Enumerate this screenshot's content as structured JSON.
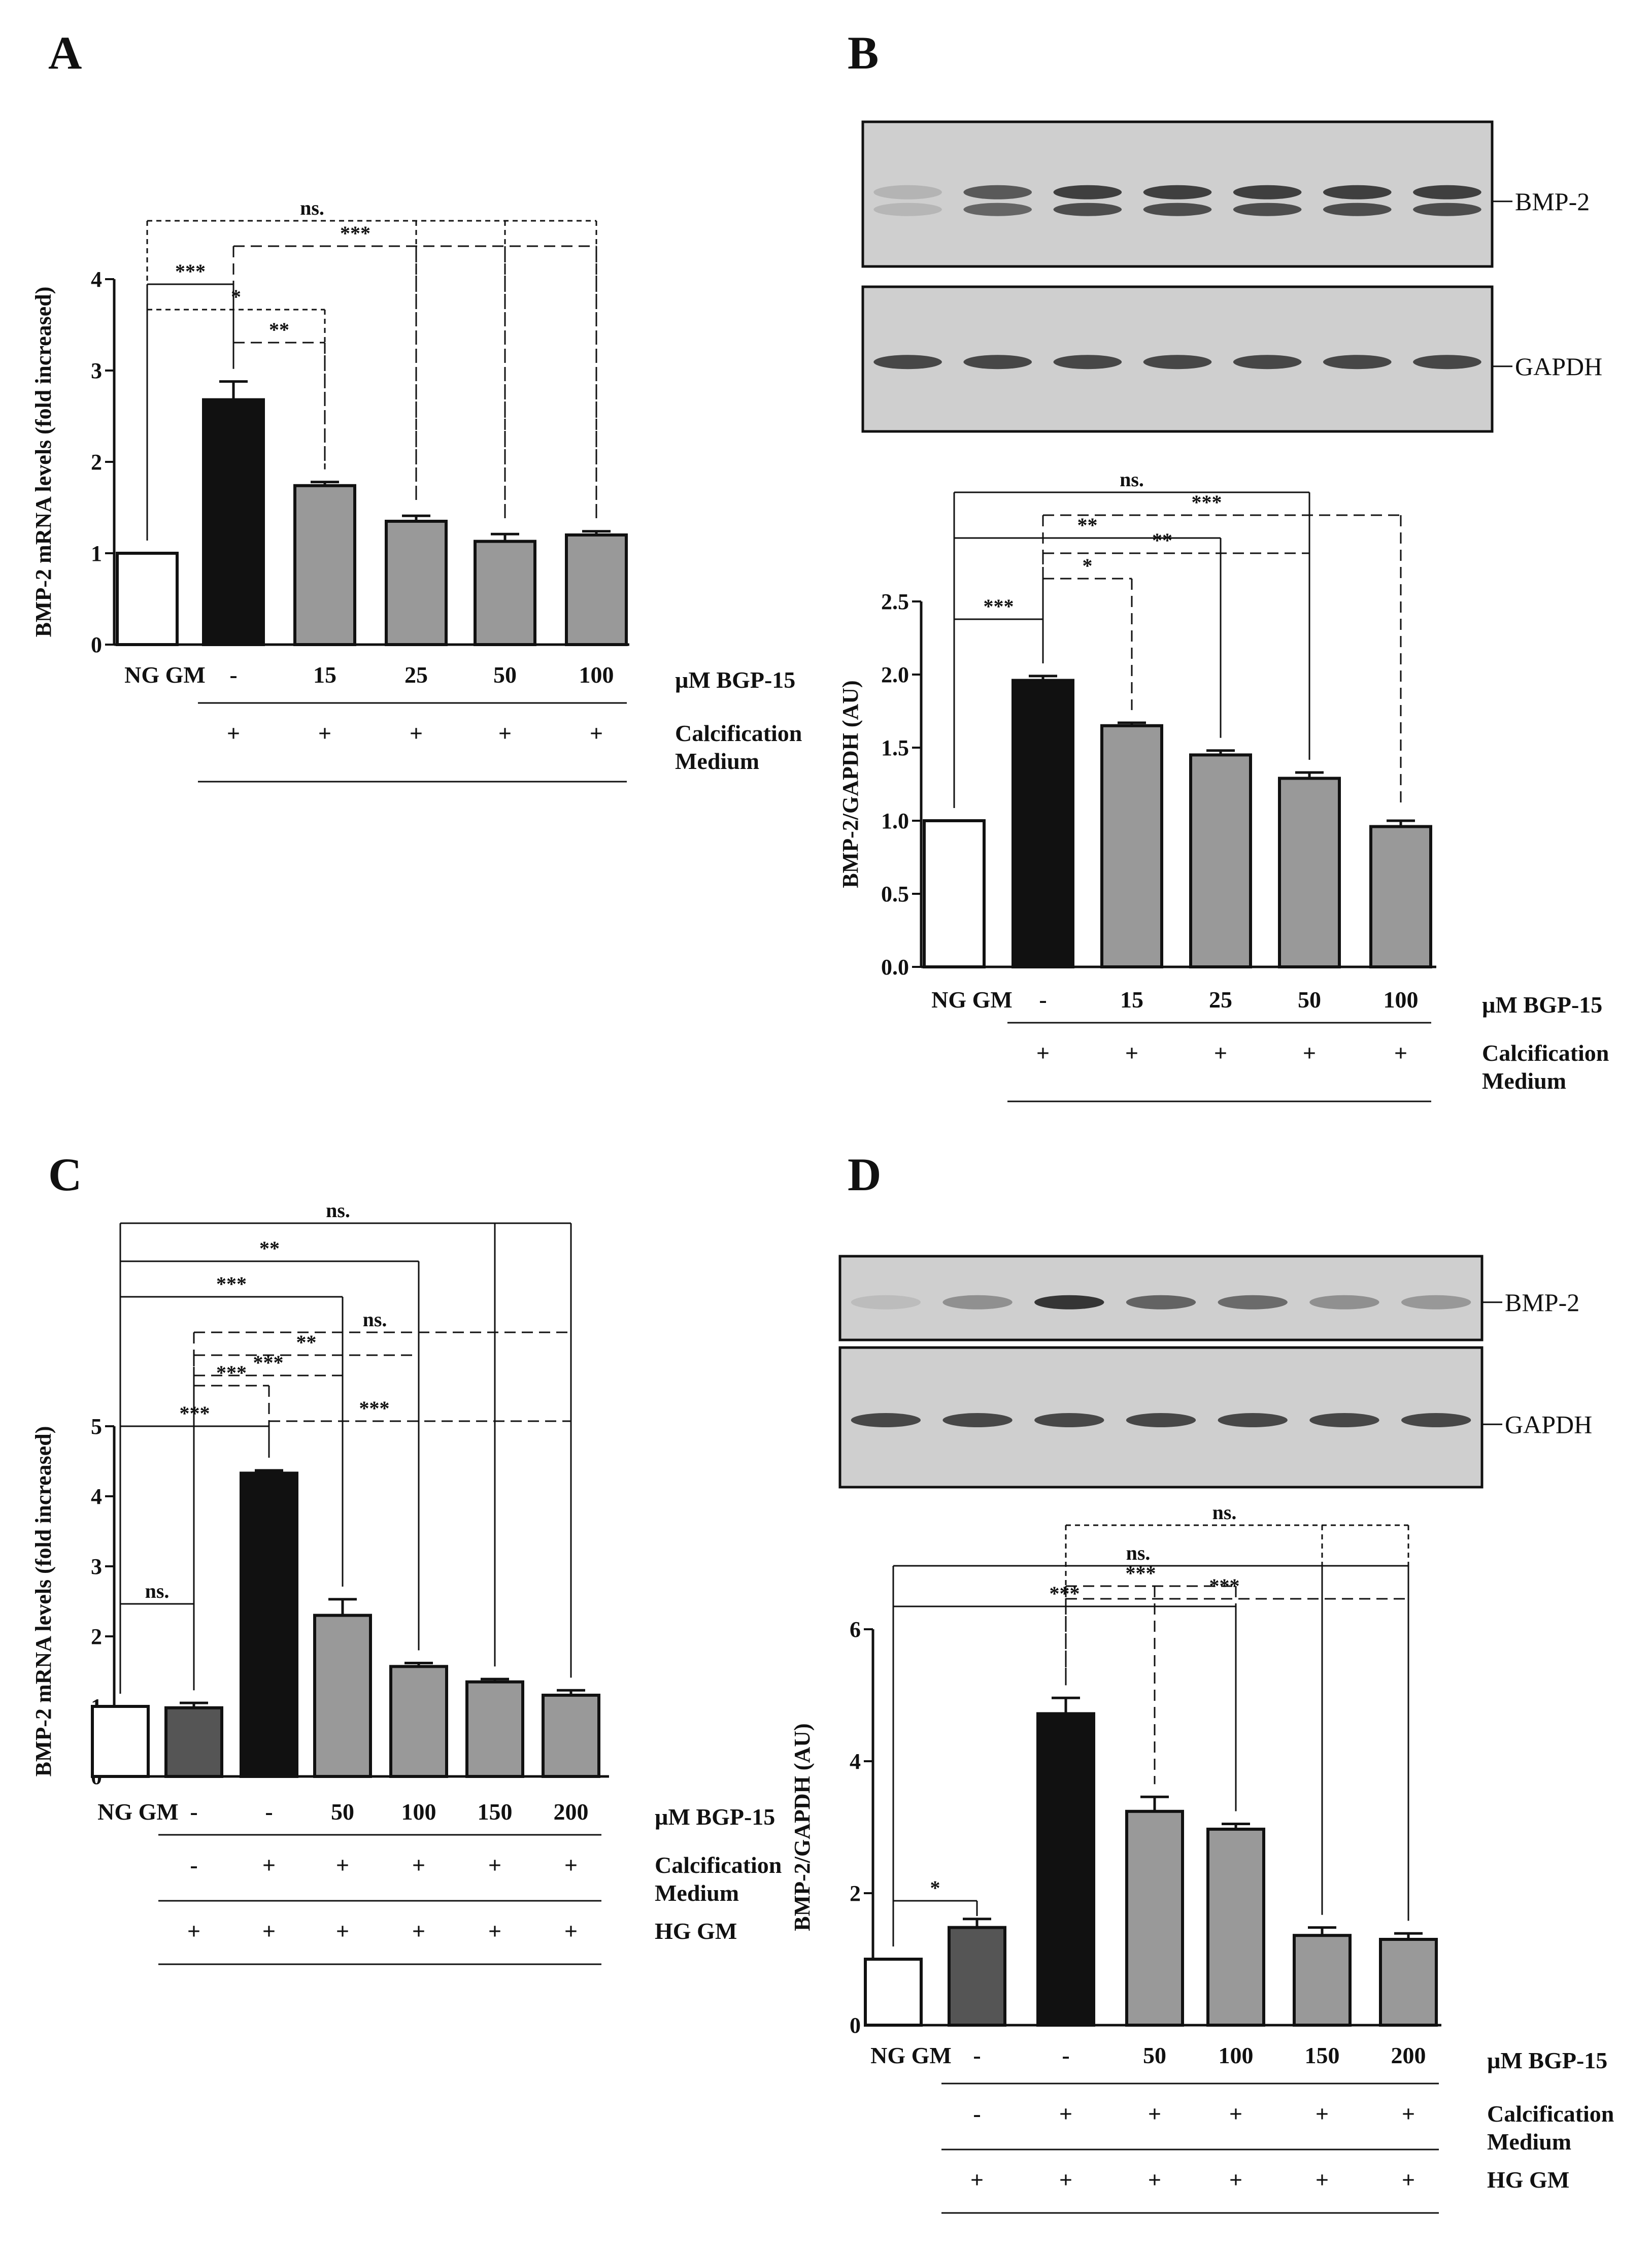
{
  "panels": {
    "A": {
      "letter": "A",
      "chart_data": {
        "type": "bar",
        "categories": [
          "NG GM",
          "-",
          "15",
          "25",
          "50",
          "100"
        ],
        "values": [
          1.0,
          2.68,
          1.74,
          1.35,
          1.13,
          1.2
        ],
        "errors": [
          0,
          0.2,
          0.04,
          0.06,
          0.08,
          0.04
        ],
        "bar_colors": [
          "#ffffff",
          "#111111",
          "#999999",
          "#999999",
          "#999999",
          "#999999"
        ],
        "ylabel": "BMP-2 mRNA levels (fold increased)",
        "ylim": [
          0,
          4
        ],
        "yticks": [
          "0",
          "1",
          "2",
          "3",
          "4"
        ],
        "treatment_label": "µM BGP-15",
        "condition_rows": [
          {
            "label": "Calcification\nMedium",
            "marks": [
              "",
              "+",
              "+",
              "+",
              "+",
              "+"
            ]
          }
        ],
        "significance": [
          {
            "label": "***",
            "from": 0,
            "to": 1,
            "style": "solid"
          },
          {
            "label": "**",
            "from": 1,
            "to": 2,
            "style": "dashed"
          },
          {
            "label": "***",
            "from": 1,
            "to": [
              3,
              4,
              5
            ],
            "style": "dashed"
          },
          {
            "label": "*",
            "from": 0,
            "to": 2,
            "style": "dotted"
          },
          {
            "label": "ns.",
            "from": 0,
            "to": [
              3,
              4,
              5
            ],
            "style": "dotted"
          }
        ]
      }
    },
    "B": {
      "letter": "B",
      "blot": {
        "labels": [
          "BMP-2",
          "GAPDH"
        ],
        "lanes": 7
      },
      "chart_data": {
        "type": "bar",
        "categories": [
          "NG GM",
          "-",
          "15",
          "25",
          "50",
          "100"
        ],
        "values": [
          1.0,
          1.96,
          1.65,
          1.45,
          1.29,
          0.96
        ],
        "errors": [
          0,
          0.03,
          0.02,
          0.03,
          0.04,
          0.04
        ],
        "bar_colors": [
          "#ffffff",
          "#111111",
          "#999999",
          "#999999",
          "#999999",
          "#999999"
        ],
        "ylabel": "BMP-2/GAPDH (AU)",
        "ylim": [
          0,
          2.5
        ],
        "yticks": [
          "0.0",
          "0.5",
          "1.0",
          "1.5",
          "2.0",
          "2.5"
        ],
        "treatment_label": "µM BGP-15",
        "condition_rows": [
          {
            "label": "Calcification\nMedium",
            "marks": [
              "",
              "+",
              "+",
              "+",
              "+",
              "+"
            ]
          }
        ],
        "significance": [
          {
            "label": "***",
            "from": 0,
            "to": 1,
            "style": "solid"
          },
          {
            "label": "*",
            "from": 1,
            "to": 2,
            "style": "dashed"
          },
          {
            "label": "**",
            "from": 1,
            "to": [
              3,
              4
            ],
            "style": "dashed"
          },
          {
            "label": "**",
            "from": 0,
            "to": 3,
            "style": "solid"
          },
          {
            "label": "***",
            "from": 1,
            "to": [
              4,
              5
            ],
            "style": "dashed"
          },
          {
            "label": "ns.",
            "from": 0,
            "to": 4,
            "style": "solid"
          }
        ]
      }
    },
    "C": {
      "letter": "C",
      "chart_data": {
        "type": "bar",
        "categories": [
          "NG GM",
          "-",
          "-",
          "50",
          "100",
          "150",
          "200"
        ],
        "values": [
          1.0,
          0.98,
          4.33,
          2.3,
          1.57,
          1.35,
          1.16
        ],
        "errors": [
          0,
          0.07,
          0.04,
          0.23,
          0.05,
          0.04,
          0.07
        ],
        "bar_colors": [
          "#ffffff",
          "#555555",
          "#111111",
          "#999999",
          "#999999",
          "#999999",
          "#999999"
        ],
        "ylabel": "BMP-2 mRNA levels (fold increased)",
        "ylim": [
          0,
          5
        ],
        "yticks": [
          "0",
          "1",
          "2",
          "3",
          "4",
          "5"
        ],
        "treatment_label": "µM BGP-15",
        "condition_rows": [
          {
            "label": "Calcification\nMedium",
            "marks": [
              "",
              "-",
              "+",
              "+",
              "+",
              "+",
              "+"
            ]
          },
          {
            "label": "HG GM",
            "marks": [
              "",
              "+",
              "+",
              "+",
              "+",
              "+",
              "+"
            ]
          }
        ],
        "significance": [
          {
            "label": "ns.",
            "from": 0,
            "to": 1,
            "style": "solid"
          },
          {
            "label": "***",
            "from": 1,
            "to": 2,
            "style": "dashed"
          },
          {
            "label": "***",
            "from": 0,
            "to": 2,
            "style": "solid"
          },
          {
            "label": "***",
            "from": 2,
            "to": [
              4,
              5,
              6
            ],
            "style": "dashed"
          },
          {
            "label": "***",
            "from": 1,
            "to": 3,
            "style": "dashed"
          },
          {
            "label": "**",
            "from": 1,
            "to": 4,
            "style": "dashed"
          },
          {
            "label": "ns.",
            "from": 1,
            "to": [
              5,
              6
            ],
            "style": "dashed"
          },
          {
            "label": "***",
            "from": 0,
            "to": 3,
            "style": "solid"
          },
          {
            "label": "**",
            "from": 0,
            "to": 4,
            "style": "solid"
          },
          {
            "label": "ns.",
            "from": 0,
            "to": [
              5,
              6
            ],
            "style": "solid"
          }
        ]
      }
    },
    "D": {
      "letter": "D",
      "blot": {
        "labels": [
          "BMP-2",
          "GAPDH"
        ],
        "lanes": 7
      },
      "chart_data": {
        "type": "bar",
        "categories": [
          "NG GM",
          "-",
          "-",
          "50",
          "100",
          "150",
          "200"
        ],
        "values": [
          1.0,
          1.48,
          4.72,
          3.24,
          2.97,
          1.36,
          1.3
        ],
        "errors": [
          0,
          0.13,
          0.24,
          0.22,
          0.08,
          0.12,
          0.09
        ],
        "bar_colors": [
          "#ffffff",
          "#555555",
          "#111111",
          "#999999",
          "#999999",
          "#999999",
          "#999999"
        ],
        "ylabel": "BMP-2/GAPDH (AU)",
        "ylim": [
          0,
          6
        ],
        "yticks": [
          "0",
          "2",
          "4",
          "6"
        ],
        "treatment_label": "µM BGP-15",
        "condition_rows": [
          {
            "label": "Calcification\nMedium",
            "marks": [
              "",
              "-",
              "+",
              "+",
              "+",
              "+",
              "+"
            ]
          },
          {
            "label": "HG GM",
            "marks": [
              "",
              "+",
              "+",
              "+",
              "+",
              "+",
              "+"
            ]
          }
        ],
        "significance": [
          {
            "label": "*",
            "from": 0,
            "to": 1,
            "style": "solid"
          },
          {
            "label": "***",
            "from": 0,
            "to": 4,
            "style": "solid"
          },
          {
            "label": "***",
            "from": 2,
            "to": [
              3,
              4
            ],
            "style": "dashed"
          },
          {
            "label": "***",
            "from": 2,
            "to": [
              5,
              6
            ],
            "style": "dashed"
          },
          {
            "label": "ns.",
            "from": 0,
            "to": [
              5,
              6
            ],
            "style": "solid"
          },
          {
            "label": "ns.",
            "from": 2,
            "to": [
              5,
              6
            ],
            "style": "dotted"
          }
        ]
      }
    }
  }
}
